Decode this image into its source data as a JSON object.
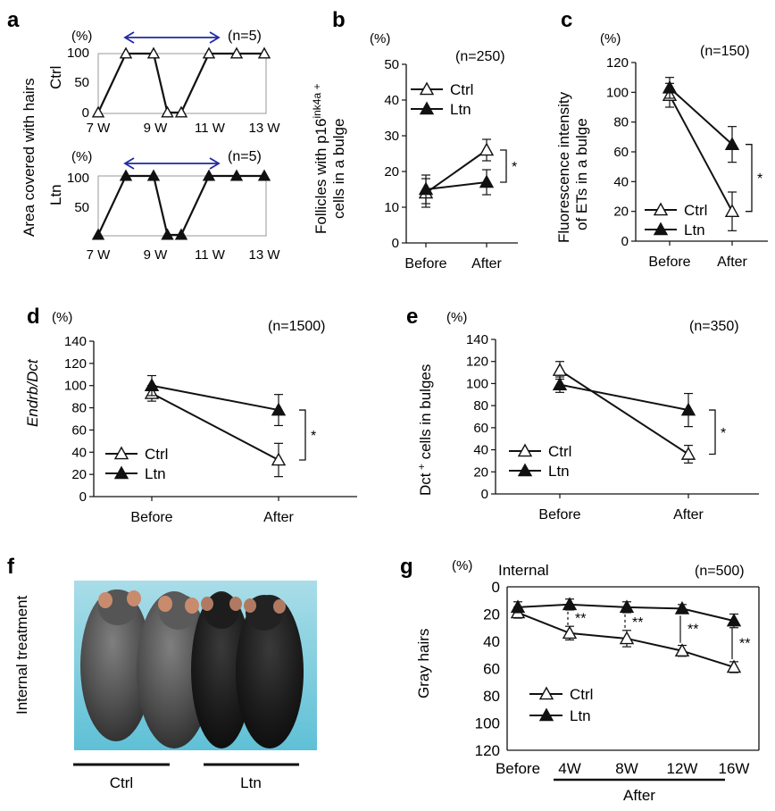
{
  "colors": {
    "line": "#111111",
    "open_marker_fill": "#ffffff",
    "filled_marker": "#111111",
    "arrow": "#1f2aa0",
    "axis": "#111111",
    "photo_background": "#8fd2e0"
  },
  "panel_a": {
    "label": "a",
    "ylabel": "Area covered with hairs",
    "top": {
      "group": "Ctrl",
      "unit": "(%)",
      "n": "(n=5)",
      "series_name": "Ctrl",
      "marker": "open",
      "yticks": [
        "0",
        "50",
        "100"
      ],
      "xticks": [
        "7 W",
        "9 W",
        "11 W",
        "13 W"
      ]
    },
    "bottom": {
      "group": "Ltn",
      "unit": "(%)",
      "n": "(n=5)",
      "series_name": "Ltn",
      "marker": "filled",
      "yticks": [
        "50",
        "100"
      ],
      "xticks": [
        "7 W",
        "9 W",
        "11 W",
        "13 W"
      ]
    }
  },
  "panel_b": {
    "label": "b",
    "unit": "(%)",
    "n": "(n=250)",
    "ylabel_line1_pre": "Follicles with p16",
    "ylabel_line1_sup": "ink4a +",
    "ylabel_line2": "cells in a bulge",
    "yticks": [
      "0",
      "10",
      "20",
      "30",
      "40",
      "50"
    ],
    "xticks": [
      "Before",
      "After"
    ],
    "legend": [
      "Ctrl",
      "Ltn"
    ],
    "sig": "*"
  },
  "panel_c": {
    "label": "c",
    "unit": "(%)",
    "n": "(n=150)",
    "ylabel_line1": "Fluorescence intensity",
    "ylabel_line2": "of ETs  in a bulge",
    "yticks": [
      "0",
      "20",
      "40",
      "60",
      "80",
      "100",
      "120"
    ],
    "xticks": [
      "Before",
      "After"
    ],
    "legend": [
      "Ctrl",
      "Ltn"
    ],
    "sig": "*"
  },
  "panel_d": {
    "label": "d",
    "unit": "(%)",
    "n": "(n=1500)",
    "ylabel": "Endrb/Dct",
    "yticks": [
      "0",
      "20",
      "40",
      "60",
      "80",
      "100",
      "120",
      "140"
    ],
    "xticks": [
      "Before",
      "After"
    ],
    "legend": [
      "Ctrl",
      "Ltn"
    ],
    "sig": "*"
  },
  "panel_e": {
    "label": "e",
    "unit": "(%)",
    "n": "(n=350)",
    "ylabel_pre": "Dct",
    "ylabel_sup": " +",
    "ylabel_post": " cells in bulges",
    "yticks": [
      "0",
      "20",
      "40",
      "60",
      "80",
      "100",
      "120",
      "140"
    ],
    "xticks": [
      "Before",
      "After"
    ],
    "legend": [
      "Ctrl",
      "Ltn"
    ],
    "sig": "*"
  },
  "panel_f": {
    "label": "f",
    "side_label": "Internal treatment",
    "group_labels": [
      "Ctrl",
      "Ltn"
    ]
  },
  "panel_g": {
    "label": "g",
    "unit": "(%)",
    "title": "Internal",
    "n": "(n=500)",
    "ylabel": "Gray hairs",
    "yticks": [
      "0",
      "20",
      "40",
      "60",
      "80",
      "100",
      "120"
    ],
    "xticks": [
      "Before",
      "4W",
      "8W",
      "12W",
      "16W"
    ],
    "after_label": "After",
    "legend": [
      "Ctrl",
      "Ltn"
    ],
    "sig": [
      "**",
      "**",
      "**",
      "**"
    ]
  },
  "chart_data": [
    {
      "panel": "a (top)",
      "type": "line",
      "x": [
        7,
        8,
        9,
        9.5,
        10,
        11,
        12,
        13
      ],
      "series": [
        {
          "name": "Ctrl",
          "values": [
            0,
            100,
            100,
            0,
            0,
            100,
            100,
            100
          ]
        }
      ],
      "xtick_labels": [
        "7 W",
        "9 W",
        "11 W",
        "13 W"
      ],
      "ylim": [
        0,
        100
      ],
      "annotation": "double-headed arrow from 8 W to 11 W",
      "unit": "(%)",
      "n": "(n=5)"
    },
    {
      "panel": "a (bottom)",
      "type": "line",
      "x": [
        7,
        8,
        9,
        9.5,
        10,
        11,
        12,
        13
      ],
      "series": [
        {
          "name": "Ltn",
          "values": [
            0,
            100,
            100,
            0,
            0,
            100,
            100,
            100
          ]
        }
      ],
      "xtick_labels": [
        "7 W",
        "9 W",
        "11 W",
        "13 W"
      ],
      "ylim": [
        0,
        100
      ],
      "annotation": "double-headed arrow from 8 W to 11 W",
      "unit": "(%)",
      "n": "(n=5)"
    },
    {
      "panel": "b",
      "type": "line",
      "categories": [
        "Before",
        "After"
      ],
      "series": [
        {
          "name": "Ctrl",
          "values": [
            14,
            26
          ],
          "errors": [
            4,
            3
          ]
        },
        {
          "name": "Ltn",
          "values": [
            15,
            17
          ],
          "errors": [
            4,
            3.5
          ]
        }
      ],
      "ylim": [
        0,
        50
      ],
      "significance": "*"
    },
    {
      "panel": "c",
      "type": "line",
      "categories": [
        "Before",
        "After"
      ],
      "series": [
        {
          "name": "Ctrl",
          "values": [
            98,
            20
          ],
          "errors": [
            8,
            13
          ]
        },
        {
          "name": "Ltn",
          "values": [
            103,
            65
          ],
          "errors": [
            7,
            12
          ]
        }
      ],
      "ylim": [
        0,
        120
      ],
      "significance": "*"
    },
    {
      "panel": "d",
      "type": "line",
      "categories": [
        "Before",
        "After"
      ],
      "series": [
        {
          "name": "Ctrl",
          "values": [
            93,
            33
          ],
          "errors": [
            7,
            15
          ]
        },
        {
          "name": "Ltn",
          "values": [
            100,
            78
          ],
          "errors": [
            9,
            14
          ]
        }
      ],
      "ylim": [
        0,
        140
      ],
      "significance": "*"
    },
    {
      "panel": "e",
      "type": "line",
      "categories": [
        "Before",
        "After"
      ],
      "series": [
        {
          "name": "Ctrl",
          "values": [
            112,
            36
          ],
          "errors": [
            8,
            8
          ]
        },
        {
          "name": "Ltn",
          "values": [
            99,
            76
          ],
          "errors": [
            7,
            15
          ]
        }
      ],
      "ylim": [
        0,
        140
      ],
      "significance": "*"
    },
    {
      "panel": "g",
      "type": "line",
      "categories": [
        "Before",
        "4W",
        "8W",
        "12W",
        "16W"
      ],
      "series": [
        {
          "name": "Ctrl",
          "values": [
            19,
            34,
            38,
            47,
            59
          ],
          "errors": [
            4,
            5,
            6,
            4,
            4
          ]
        },
        {
          "name": "Ltn",
          "values": [
            15,
            13,
            15,
            16,
            25
          ],
          "errors": [
            4,
            4,
            4,
            3,
            5
          ]
        }
      ],
      "ylim": [
        0,
        120
      ],
      "y_inverted": true,
      "significance": [
        "**",
        "**",
        "**",
        "**"
      ]
    }
  ]
}
